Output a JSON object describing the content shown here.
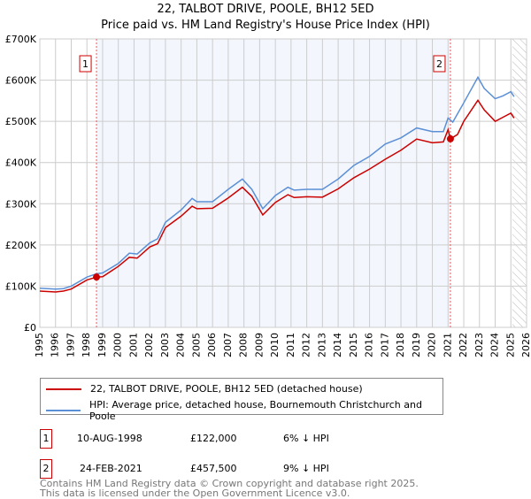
{
  "chart_data": {
    "type": "line",
    "title": "22, TALBOT DRIVE, POOLE, BH12 5ED",
    "subtitle": "Price paid vs. HM Land Registry's House Price Index (HPI)",
    "xlim": [
      1995,
      2026
    ],
    "ylim": [
      0,
      700000
    ],
    "x_ticks": [
      "1995",
      "1996",
      "1997",
      "1998",
      "1999",
      "2000",
      "2001",
      "2002",
      "2003",
      "2004",
      "2005",
      "2006",
      "2007",
      "2008",
      "2009",
      "2010",
      "2011",
      "2012",
      "2013",
      "2014",
      "2015",
      "2016",
      "2017",
      "2018",
      "2019",
      "2020",
      "2021",
      "2022",
      "2023",
      "2024",
      "2025",
      "2026"
    ],
    "y_ticks": [
      {
        "v": 0,
        "label": "£0"
      },
      {
        "v": 100000,
        "label": "£100K"
      },
      {
        "v": 200000,
        "label": "£200K"
      },
      {
        "v": 300000,
        "label": "£300K"
      },
      {
        "v": 400000,
        "label": "£400K"
      },
      {
        "v": 500000,
        "label": "£500K"
      },
      {
        "v": 600000,
        "label": "£600K"
      },
      {
        "v": 700000,
        "label": "£700K"
      }
    ],
    "grid": true,
    "shaded_range": [
      1998.61,
      2021.15
    ],
    "hatched_from": 2025.1,
    "series": [
      {
        "name": "22, TALBOT DRIVE, POOLE, BH12 5ED (detached house)",
        "color": "#cc0000",
        "x": [
          1995,
          1996,
          1996.5,
          1997,
          1998,
          1998.61,
          1999,
          2000,
          2000.7,
          2001.2,
          2002,
          2002.5,
          2003,
          2004,
          2004.7,
          2005,
          2006,
          2007,
          2007.9,
          2008.5,
          2009.2,
          2010,
          2010.8,
          2011.2,
          2012,
          2013,
          2014,
          2015,
          2016,
          2017,
          2018,
          2019,
          2020,
          2020.7,
          2021,
          2021.15,
          2021.6,
          2022,
          2022.9,
          2023.3,
          2024,
          2024.5,
          2025,
          2025.2
        ],
        "y": [
          88000,
          86000,
          88000,
          93000,
          115000,
          122000,
          123000,
          148000,
          170000,
          168000,
          195000,
          203000,
          242000,
          270000,
          294000,
          288000,
          289000,
          314000,
          340000,
          318000,
          273000,
          303000,
          322000,
          315000,
          317000,
          316000,
          336000,
          363000,
          384000,
          408000,
          430000,
          457000,
          448000,
          450000,
          480000,
          457500,
          468000,
          500000,
          551000,
          528000,
          500000,
          510000,
          520000,
          508000
        ]
      },
      {
        "name": "HPI: Average price, detached house, Bournemouth Christchurch and Poole",
        "color": "#5b8fd6",
        "x": [
          1995,
          1996,
          1996.5,
          1997,
          1998,
          1998.61,
          1999,
          2000,
          2000.7,
          2001.2,
          2002,
          2002.5,
          2003,
          2004,
          2004.7,
          2005,
          2006,
          2007,
          2007.9,
          2008.5,
          2009.2,
          2010,
          2010.8,
          2011.2,
          2012,
          2013,
          2014,
          2015,
          2016,
          2017,
          2018,
          2019,
          2020,
          2020.7,
          2021,
          2021.3,
          2022,
          2022.9,
          2023.3,
          2024,
          2024.5,
          2025,
          2025.2
        ],
        "y": [
          95000,
          93000,
          94000,
          100000,
          122000,
          130000,
          132000,
          155000,
          180000,
          178000,
          205000,
          215000,
          255000,
          285000,
          313000,
          305000,
          305000,
          335000,
          360000,
          335000,
          288000,
          320000,
          340000,
          333000,
          335000,
          335000,
          360000,
          393000,
          415000,
          445000,
          460000,
          484000,
          475000,
          475000,
          508000,
          498000,
          545000,
          607000,
          580000,
          555000,
          562000,
          572000,
          560000
        ]
      }
    ],
    "annotations": [
      {
        "label": "1",
        "x": 1998.61,
        "y": 122000
      },
      {
        "label": "2",
        "x": 2021.15,
        "y": 457500
      }
    ]
  },
  "legend": {
    "items": [
      "22, TALBOT DRIVE, POOLE, BH12 5ED (detached house)",
      "HPI: Average price, detached house, Bournemouth Christchurch and Poole"
    ]
  },
  "transactions": [
    {
      "num": "1",
      "date": "10-AUG-1998",
      "price": "£122,000",
      "delta": "6% ↓ HPI"
    },
    {
      "num": "2",
      "date": "24-FEB-2021",
      "price": "£457,500",
      "delta": "9% ↓ HPI"
    }
  ],
  "footer": [
    "Contains HM Land Registry data © Crown copyright and database right 2025.",
    "This data is licensed under the Open Government Licence v3.0."
  ]
}
